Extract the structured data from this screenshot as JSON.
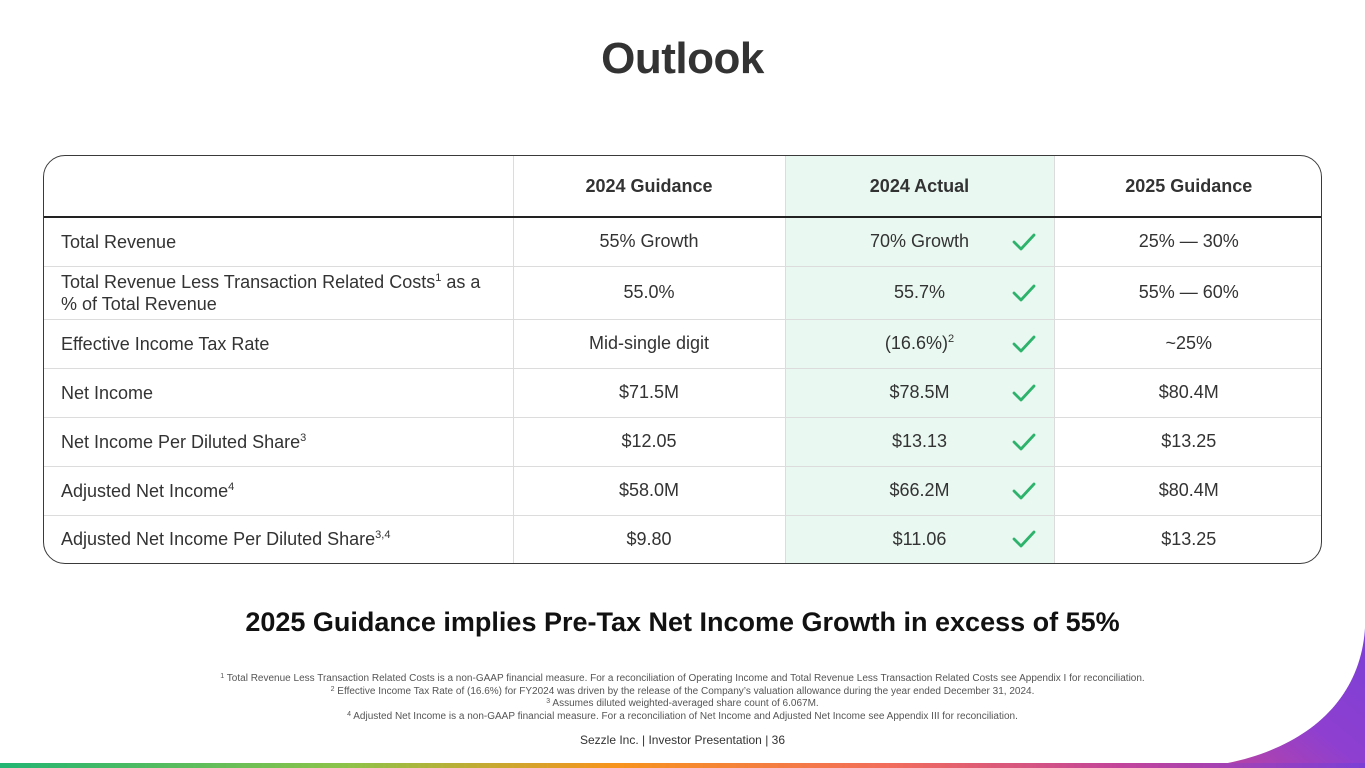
{
  "title": "Outlook",
  "table": {
    "columns": [
      "",
      "2024 Guidance",
      "2024 Actual",
      "2025 Guidance"
    ],
    "rows": [
      {
        "metric": "Total Revenue",
        "metric_sup": "",
        "metric_suffix": "",
        "guidance_2024": "55% Growth",
        "actual_2024": "70% Growth",
        "actual_sup": "",
        "guidance_2025": "25% — 30%"
      },
      {
        "metric": "Total Revenue Less Transaction Related Costs",
        "metric_sup": "1",
        "metric_suffix": " as a % of Total Revenue",
        "guidance_2024": "55.0%",
        "actual_2024": "55.7%",
        "actual_sup": "",
        "guidance_2025": "55% — 60%"
      },
      {
        "metric": "Effective Income Tax Rate",
        "metric_sup": "",
        "metric_suffix": "",
        "guidance_2024": "Mid-single digit",
        "actual_2024": "(16.6%)",
        "actual_sup": "2",
        "guidance_2025": "~25%"
      },
      {
        "metric": "Net Income",
        "metric_sup": "",
        "metric_suffix": "",
        "guidance_2024": "$71.5M",
        "actual_2024": "$78.5M",
        "actual_sup": "",
        "guidance_2025": "$80.4M"
      },
      {
        "metric": "Net Income Per Diluted Share",
        "metric_sup": "3",
        "metric_suffix": "",
        "guidance_2024": "$12.05",
        "actual_2024": "$13.13",
        "actual_sup": "",
        "guidance_2025": "$13.25"
      },
      {
        "metric": "Adjusted Net Income",
        "metric_sup": "4",
        "metric_suffix": "",
        "guidance_2024": "$58.0M",
        "actual_2024": "$66.2M",
        "actual_sup": "",
        "guidance_2025": "$80.4M"
      },
      {
        "metric": "Adjusted Net Income Per Diluted Share",
        "metric_sup": "3,4",
        "metric_suffix": "",
        "guidance_2024": "$9.80",
        "actual_2024": "$11.06",
        "actual_sup": "",
        "guidance_2025": "$13.25"
      }
    ]
  },
  "headline": "2025 Guidance implies Pre-Tax Net Income Growth in excess of 55%",
  "footnotes": [
    {
      "num": "1",
      "text": "Total Revenue Less Transaction Related Costs is a non-GAAP financial measure. For a reconciliation of Operating Income and Total Revenue Less Transaction Related Costs see Appendix I for reconciliation."
    },
    {
      "num": "2",
      "text": "Effective Income Tax Rate of (16.6%) for FY2024 was driven by the release of the Company’s valuation allowance during the year ended December 31, 2024."
    },
    {
      "num": "3",
      "text": "Assumes diluted weighted-averaged share count of 6.067M."
    },
    {
      "num": "4",
      "text": "Adjusted Net Income is a non-GAAP financial measure. For a reconciliation of Net Income and Adjusted Net Income see Appendix III for reconciliation."
    }
  ],
  "footer": "Sezzle Inc. | Investor Presentation | 36",
  "icons": {
    "check": "check-icon"
  },
  "colors": {
    "check": "#2db36b",
    "actual_highlight": "#e9f8f1",
    "corner_accent": "#7b3fd6"
  }
}
